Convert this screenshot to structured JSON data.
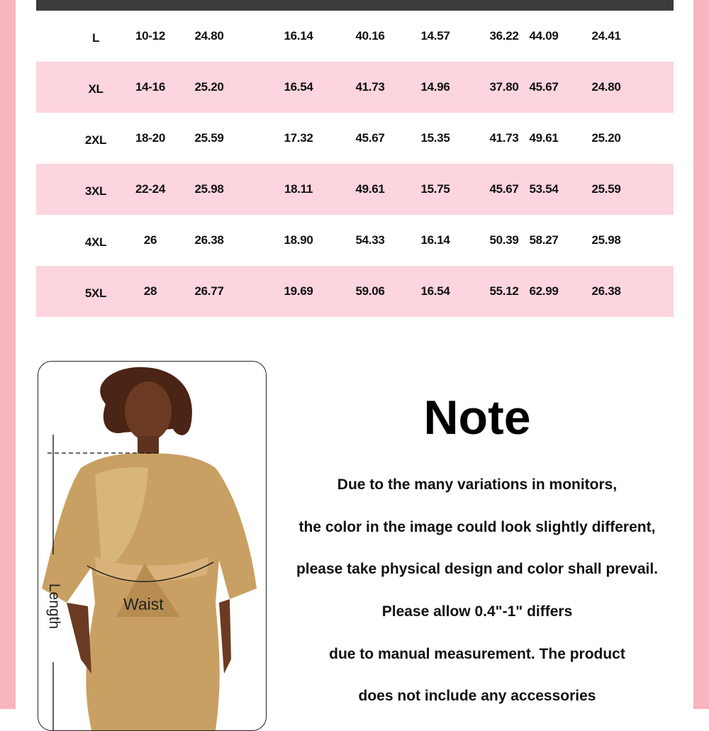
{
  "colors": {
    "border_pink": "#f8b5c0",
    "row_pink": "#fdd5de",
    "header_dark": "#3b3a3c"
  },
  "table": {
    "rows": [
      [
        "L",
        "10-12",
        "24.80",
        "16.14",
        "40.16",
        "14.57",
        "36.22",
        "44.09",
        "24.41"
      ],
      [
        "XL",
        "14-16",
        "25.20",
        "16.54",
        "41.73",
        "14.96",
        "37.80",
        "45.67",
        "24.80"
      ],
      [
        "2XL",
        "18-20",
        "25.59",
        "17.32",
        "45.67",
        "15.35",
        "41.73",
        "49.61",
        "25.20"
      ],
      [
        "3XL",
        "22-24",
        "25.98",
        "18.11",
        "49.61",
        "15.75",
        "45.67",
        "53.54",
        "25.59"
      ],
      [
        "4XL",
        "26",
        "26.38",
        "18.90",
        "54.33",
        "16.14",
        "50.39",
        "58.27",
        "25.98"
      ],
      [
        "5XL",
        "28",
        "26.77",
        "19.69",
        "59.06",
        "16.54",
        "55.12",
        "62.99",
        "26.38"
      ]
    ]
  },
  "figure": {
    "length_label": "Length",
    "waist_label": "Waist"
  },
  "note": {
    "title": "Note",
    "lines": [
      "Due to the many variations in monitors,",
      "the color in the image could look slightly different,",
      "please take physical design and color shall prevail.",
      "Please allow 0.4\"-1\" differs",
      "due to manual measurement. The product",
      "does not include any accessories"
    ]
  }
}
